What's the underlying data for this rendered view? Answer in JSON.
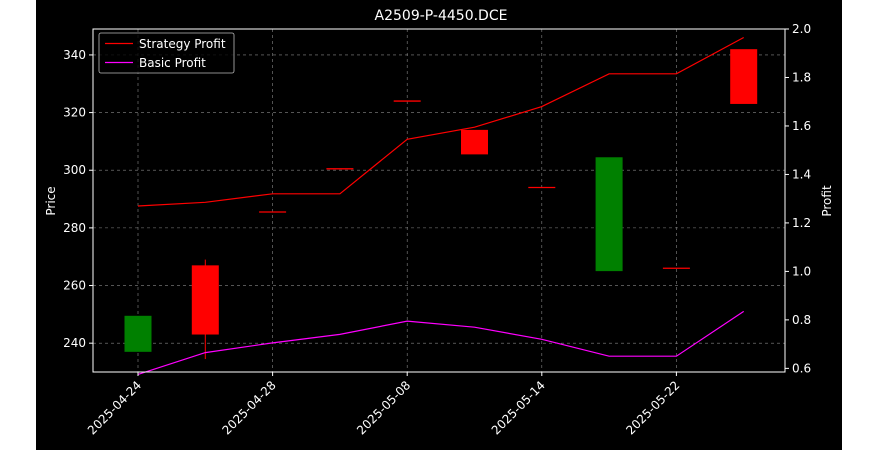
{
  "chart_data": {
    "type": "candlestick",
    "title": "A2509-P-4450.DCE",
    "ylabel_left": "Price",
    "ylabel_right": "Profit",
    "xlabel": "",
    "ylim_left": [
      230,
      349
    ],
    "ylim_right": [
      0.585,
      2.0
    ],
    "yticks_left": [
      240,
      260,
      280,
      300,
      320,
      340
    ],
    "yticks_right": [
      "0.6",
      "0.8",
      "1.0",
      "1.2",
      "1.4",
      "1.6",
      "1.8",
      "2.0"
    ],
    "xticks": [
      "2025-04-24",
      "2025-04-28",
      "2025-05-08",
      "2025-05-14",
      "2025-05-22"
    ],
    "grid": true,
    "legend_position": "top-left",
    "colors": {
      "up": "#008000",
      "down": "#ff0000",
      "strategy": "#ff0000",
      "basic": "#ff00ff"
    },
    "candles": [
      {
        "x": 0,
        "open": 237,
        "close": 249.5,
        "high": 249.5,
        "low": 237,
        "color": "green"
      },
      {
        "x": 1,
        "open": 267,
        "close": 243,
        "high": 269,
        "low": 234.5,
        "color": "red"
      },
      {
        "x": 2,
        "open": 285.5,
        "close": 285.5,
        "high": 285.5,
        "low": 285.5,
        "color": "red"
      },
      {
        "x": 3,
        "open": 300.5,
        "close": 300.5,
        "high": 300.5,
        "low": 300.5,
        "color": "red"
      },
      {
        "x": 4,
        "open": 324,
        "close": 324,
        "high": 324,
        "low": 324,
        "color": "red"
      },
      {
        "x": 5,
        "open": 314,
        "close": 305.5,
        "high": 314,
        "low": 305.5,
        "color": "red"
      },
      {
        "x": 6,
        "open": 294,
        "close": 294,
        "high": 294,
        "low": 294,
        "color": "red"
      },
      {
        "x": 7,
        "open": 265,
        "close": 304.5,
        "high": 304.5,
        "low": 265,
        "color": "green"
      },
      {
        "x": 8,
        "open": 266,
        "close": 266,
        "high": 266,
        "low": 266,
        "color": "red"
      },
      {
        "x": 9,
        "open": 342,
        "close": 323,
        "high": 342,
        "low": 323,
        "color": "red"
      }
    ],
    "series": [
      {
        "name": "Strategy Profit",
        "axis": "right",
        "x": [
          0,
          1,
          2,
          3,
          4,
          5,
          6,
          7,
          8,
          9
        ],
        "values": [
          1.27,
          1.285,
          1.32,
          1.32,
          1.545,
          1.595,
          1.68,
          1.815,
          1.815,
          1.965
        ]
      },
      {
        "name": "Basic Profit",
        "axis": "right",
        "x": [
          0,
          1,
          2,
          3,
          4,
          5,
          6,
          7,
          8,
          9
        ],
        "values": [
          0.575,
          0.665,
          0.705,
          0.74,
          0.795,
          0.77,
          0.72,
          0.65,
          0.65,
          0.835
        ]
      }
    ]
  }
}
